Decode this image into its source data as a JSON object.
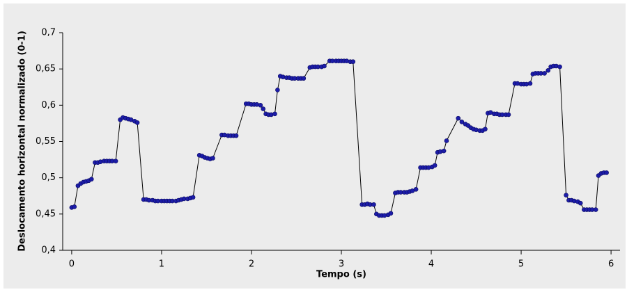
{
  "chart_data": {
    "type": "line",
    "x_label": "Tempo (s)",
    "y_label": "Deslocamento horizontal normalizado (0-1)",
    "color": "#000000",
    "marker_color": "#1c1ca8",
    "xlim": [
      -0.1,
      6.1
    ],
    "ylim": [
      0.4,
      0.7
    ],
    "xticks": [
      0,
      1,
      2,
      3,
      4,
      5,
      6
    ],
    "yticks": [
      {
        "value": 0.4,
        "label": "0,4"
      },
      {
        "value": 0.45,
        "label": "0,45"
      },
      {
        "value": 0.5,
        "label": "0,5"
      },
      {
        "value": 0.55,
        "label": "0,55"
      },
      {
        "value": 0.6,
        "label": "0,6"
      },
      {
        "value": 0.65,
        "label": "0,65"
      },
      {
        "value": 0.7,
        "label": "0,7"
      }
    ],
    "x": [
      0.0,
      0.03,
      0.07,
      0.1,
      0.13,
      0.16,
      0.19,
      0.22,
      0.26,
      0.29,
      0.32,
      0.36,
      0.39,
      0.42,
      0.45,
      0.49,
      0.54,
      0.57,
      0.6,
      0.63,
      0.66,
      0.7,
      0.73,
      0.8,
      0.83,
      0.86,
      0.9,
      0.93,
      0.96,
      1.0,
      1.03,
      1.06,
      1.09,
      1.12,
      1.16,
      1.19,
      1.22,
      1.25,
      1.29,
      1.32,
      1.35,
      1.42,
      1.45,
      1.48,
      1.51,
      1.54,
      1.57,
      1.67,
      1.7,
      1.74,
      1.77,
      1.8,
      1.83,
      1.94,
      1.97,
      2.0,
      2.03,
      2.06,
      2.1,
      2.13,
      2.16,
      2.19,
      2.22,
      2.26,
      2.29,
      2.32,
      2.35,
      2.39,
      2.42,
      2.45,
      2.48,
      2.52,
      2.55,
      2.58,
      2.65,
      2.68,
      2.71,
      2.74,
      2.78,
      2.81,
      2.87,
      2.9,
      2.94,
      2.97,
      3.0,
      3.03,
      3.06,
      3.1,
      3.13,
      3.23,
      3.26,
      3.29,
      3.32,
      3.36,
      3.39,
      3.42,
      3.45,
      3.48,
      3.52,
      3.55,
      3.6,
      3.63,
      3.66,
      3.7,
      3.73,
      3.76,
      3.79,
      3.83,
      3.88,
      3.91,
      3.94,
      3.97,
      4.01,
      4.04,
      4.07,
      4.1,
      4.14,
      4.17,
      4.3,
      4.34,
      4.38,
      4.41,
      4.44,
      4.47,
      4.5,
      4.54,
      4.57,
      4.6,
      4.63,
      4.66,
      4.7,
      4.73,
      4.76,
      4.79,
      4.83,
      4.86,
      4.93,
      4.96,
      5.0,
      5.03,
      5.06,
      5.1,
      5.13,
      5.16,
      5.19,
      5.22,
      5.26,
      5.3,
      5.33,
      5.36,
      5.39,
      5.43,
      5.5,
      5.53,
      5.56,
      5.59,
      5.63,
      5.66,
      5.7,
      5.73,
      5.76,
      5.79,
      5.83,
      5.86,
      5.89,
      5.92,
      5.95
    ],
    "values": [
      0.459,
      0.46,
      0.489,
      0.492,
      0.494,
      0.495,
      0.496,
      0.498,
      0.521,
      0.521,
      0.522,
      0.523,
      0.523,
      0.523,
      0.523,
      0.523,
      0.58,
      0.583,
      0.582,
      0.581,
      0.58,
      0.578,
      0.576,
      0.47,
      0.47,
      0.469,
      0.469,
      0.468,
      0.468,
      0.468,
      0.468,
      0.468,
      0.468,
      0.468,
      0.468,
      0.469,
      0.47,
      0.471,
      0.471,
      0.472,
      0.473,
      0.531,
      0.53,
      0.528,
      0.527,
      0.526,
      0.527,
      0.559,
      0.559,
      0.558,
      0.558,
      0.558,
      0.558,
      0.602,
      0.602,
      0.601,
      0.601,
      0.601,
      0.6,
      0.595,
      0.588,
      0.587,
      0.587,
      0.588,
      0.621,
      0.64,
      0.639,
      0.638,
      0.638,
      0.637,
      0.637,
      0.637,
      0.637,
      0.637,
      0.652,
      0.653,
      0.653,
      0.653,
      0.653,
      0.654,
      0.661,
      0.661,
      0.661,
      0.661,
      0.661,
      0.661,
      0.661,
      0.66,
      0.66,
      0.463,
      0.463,
      0.464,
      0.463,
      0.463,
      0.45,
      0.448,
      0.448,
      0.448,
      0.449,
      0.451,
      0.479,
      0.48,
      0.48,
      0.48,
      0.48,
      0.481,
      0.482,
      0.484,
      0.514,
      0.514,
      0.514,
      0.514,
      0.515,
      0.517,
      0.535,
      0.536,
      0.537,
      0.551,
      0.582,
      0.577,
      0.574,
      0.572,
      0.569,
      0.567,
      0.566,
      0.565,
      0.565,
      0.567,
      0.589,
      0.59,
      0.588,
      0.588,
      0.587,
      0.587,
      0.587,
      0.587,
      0.63,
      0.63,
      0.629,
      0.629,
      0.629,
      0.63,
      0.643,
      0.644,
      0.644,
      0.644,
      0.644,
      0.648,
      0.653,
      0.654,
      0.654,
      0.653,
      0.476,
      0.469,
      0.469,
      0.468,
      0.467,
      0.465,
      0.456,
      0.456,
      0.456,
      0.456,
      0.456,
      0.503,
      0.506,
      0.507,
      0.507
    ]
  }
}
